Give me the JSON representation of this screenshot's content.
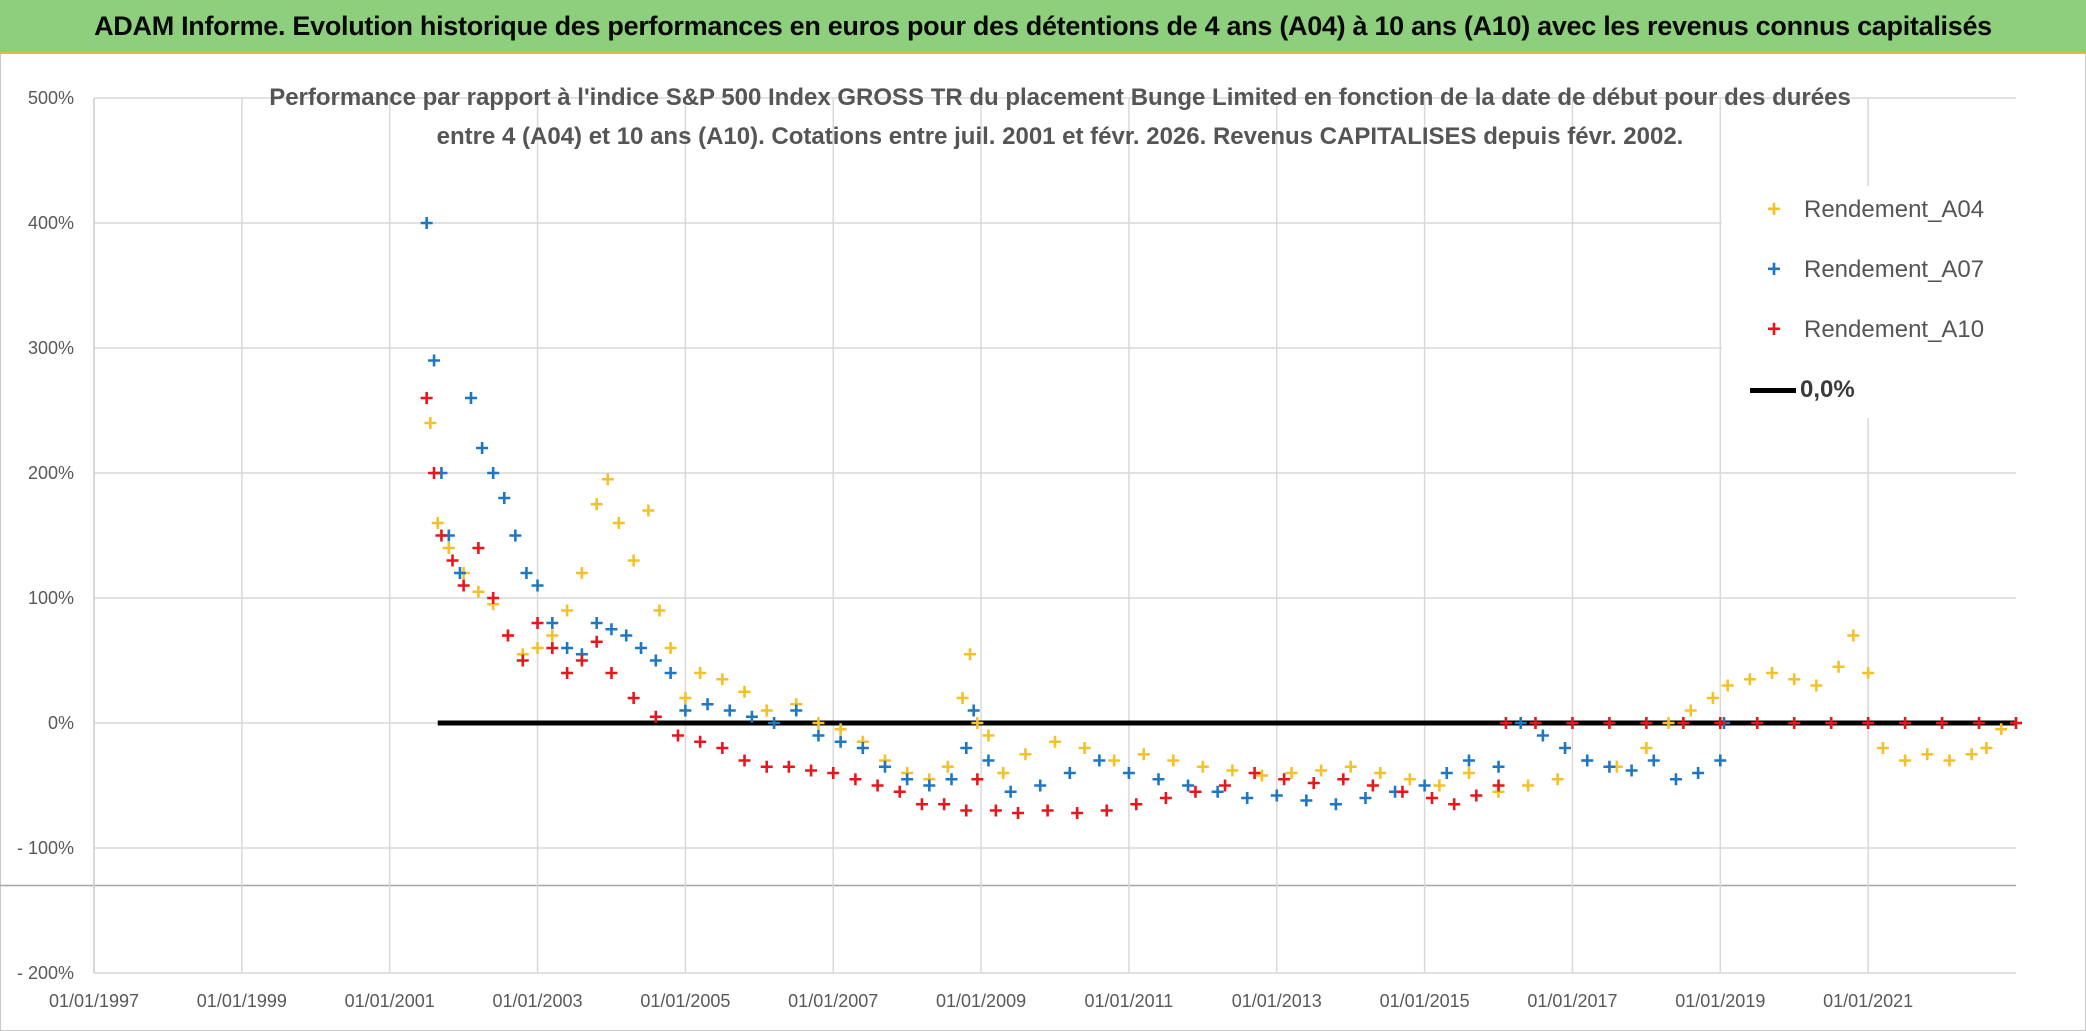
{
  "banner": {
    "title": "ADAM Informe. Evolution historique des performances en euros pour des détentions de 4 ans (A04) à 10 ans (A10) avec les revenus connus capitalisés"
  },
  "colors": {
    "banner_bg": "#8ecf7e",
    "banner_border": "#e9b73a",
    "series_a04": "#f5c02a",
    "series_a07": "#1f77c4",
    "series_a10": "#e8161b",
    "zero_line": "#000000",
    "grid": "#d9d9d9"
  },
  "chart_data": {
    "type": "scatter",
    "title_line1": "Performance par rapport à l'indice S&P 500 Index GROSS TR  du placement Bunge Limited en fonction de la date de début pour des durées",
    "title_line2": "entre 4 (A04) et 10 ans (A10). Cotations entre juil. 2001 et févr. 2026. Revenus CAPITALISES depuis févr. 2002.",
    "xlabel": "",
    "ylabel": "",
    "xlim": [
      1997.0,
      2023.0
    ],
    "ylim": [
      -200,
      500
    ],
    "y_ticks": [
      500,
      400,
      300,
      200,
      100,
      0,
      -100,
      -200
    ],
    "y_tick_labels": [
      "500%",
      "400%",
      "300%",
      "200%",
      "100%",
      "0%",
      "- 100%",
      "- 200%"
    ],
    "x_ticks": [
      1997,
      1999,
      2001,
      2003,
      2005,
      2007,
      2009,
      2011,
      2013,
      2015,
      2017,
      2019,
      2021
    ],
    "x_tick_labels": [
      "01/01/1997",
      "01/01/1999",
      "01/01/2001",
      "01/01/2003",
      "01/01/2005",
      "01/01/2007",
      "01/01/2009",
      "01/01/2011",
      "01/01/2013",
      "01/01/2015",
      "01/01/2017",
      "01/01/2019",
      "01/01/2021"
    ],
    "grid": true,
    "legend_position": "top-right",
    "series": [
      {
        "name": "Rendement_A04",
        "marker": "+",
        "x": [
          2001.55,
          2001.65,
          2001.8,
          2002.0,
          2002.2,
          2002.4,
          2002.6,
          2002.8,
          2003.0,
          2003.2,
          2003.4,
          2003.6,
          2003.8,
          2003.95,
          2004.1,
          2004.3,
          2004.5,
          2004.65,
          2004.8,
          2005.0,
          2005.2,
          2005.5,
          2005.8,
          2006.1,
          2006.5,
          2006.8,
          2007.1,
          2007.4,
          2007.7,
          2008.0,
          2008.3,
          2008.55,
          2008.75,
          2008.85,
          2008.95,
          2009.1,
          2009.3,
          2009.6,
          2010.0,
          2010.4,
          2010.8,
          2011.2,
          2011.6,
          2012.0,
          2012.4,
          2012.8,
          2013.2,
          2013.6,
          2014.0,
          2014.4,
          2014.8,
          2015.2,
          2015.6,
          2016.0,
          2016.4,
          2016.8,
          2017.2,
          2017.6,
          2018.0,
          2018.3,
          2018.6,
          2018.9,
          2019.1,
          2019.4,
          2019.7,
          2020.0,
          2020.3,
          2020.6,
          2020.8,
          2021.0,
          2021.2,
          2021.5,
          2021.8,
          2022.1,
          2022.4,
          2022.6,
          2022.8,
          2023.0
        ],
        "y": [
          240,
          160,
          140,
          120,
          105,
          95,
          70,
          55,
          60,
          70,
          90,
          120,
          175,
          195,
          160,
          130,
          170,
          90,
          60,
          20,
          40,
          35,
          25,
          10,
          15,
          0,
          -5,
          -15,
          -30,
          -40,
          -45,
          -35,
          20,
          55,
          0,
          -10,
          -40,
          -25,
          -15,
          -20,
          -30,
          -25,
          -30,
          -35,
          -38,
          -42,
          -40,
          -38,
          -35,
          -40,
          -45,
          -50,
          -40,
          -55,
          -50,
          -45,
          -30,
          -35,
          -20,
          0,
          10,
          20,
          30,
          35,
          40,
          35,
          30,
          45,
          70,
          40,
          -20,
          -30,
          -25,
          -30,
          -25,
          -20,
          -5,
          0
        ]
      },
      {
        "name": "Rendement_A07",
        "marker": "+",
        "x": [
          2001.5,
          2001.6,
          2001.7,
          2001.8,
          2001.95,
          2002.1,
          2002.25,
          2002.4,
          2002.55,
          2002.7,
          2002.85,
          2003.0,
          2003.2,
          2003.4,
          2003.6,
          2003.8,
          2004.0,
          2004.2,
          2004.4,
          2004.6,
          2004.8,
          2005.0,
          2005.3,
          2005.6,
          2005.9,
          2006.2,
          2006.5,
          2006.8,
          2007.1,
          2007.4,
          2007.7,
          2008.0,
          2008.3,
          2008.6,
          2008.8,
          2008.9,
          2009.1,
          2009.4,
          2009.8,
          2010.2,
          2010.6,
          2011.0,
          2011.4,
          2011.8,
          2012.2,
          2012.6,
          2013.0,
          2013.4,
          2013.8,
          2014.2,
          2014.6,
          2015.0,
          2015.3,
          2015.6,
          2016.0,
          2016.3,
          2016.6,
          2016.9,
          2017.2,
          2017.5,
          2017.8,
          2018.1,
          2018.4,
          2018.7,
          2019.0,
          2019.05
        ],
        "y": [
          400,
          290,
          200,
          150,
          120,
          260,
          220,
          200,
          180,
          150,
          120,
          110,
          80,
          60,
          55,
          80,
          75,
          70,
          60,
          50,
          40,
          10,
          15,
          10,
          5,
          0,
          10,
          -10,
          -15,
          -20,
          -35,
          -45,
          -50,
          -45,
          -20,
          10,
          -30,
          -55,
          -50,
          -40,
          -30,
          -40,
          -45,
          -50,
          -55,
          -60,
          -58,
          -62,
          -65,
          -60,
          -55,
          -50,
          -40,
          -30,
          -35,
          0,
          -10,
          -20,
          -30,
          -35,
          -38,
          -30,
          -45,
          -40,
          -30,
          0
        ]
      },
      {
        "name": "Rendement_A10",
        "marker": "+",
        "x": [
          2001.5,
          2001.6,
          2001.7,
          2001.85,
          2002.0,
          2002.2,
          2002.4,
          2002.6,
          2002.8,
          2003.0,
          2003.2,
          2003.4,
          2003.6,
          2003.8,
          2004.0,
          2004.3,
          2004.6,
          2004.9,
          2005.2,
          2005.5,
          2005.8,
          2006.1,
          2006.4,
          2006.7,
          2007.0,
          2007.3,
          2007.6,
          2007.9,
          2008.2,
          2008.5,
          2008.8,
          2008.95,
          2009.2,
          2009.5,
          2009.9,
          2010.3,
          2010.7,
          2011.1,
          2011.5,
          2011.9,
          2012.3,
          2012.7,
          2013.1,
          2013.5,
          2013.9,
          2014.3,
          2014.7,
          2015.1,
          2015.4,
          2015.7,
          2016.0,
          2016.1,
          2016.5,
          2017.0,
          2017.5,
          2018.0,
          2018.5,
          2019.0,
          2019.5,
          2020.0,
          2020.5,
          2021.0,
          2021.5,
          2022.0,
          2022.5,
          2023.0
        ],
        "y": [
          260,
          200,
          150,
          130,
          110,
          140,
          100,
          70,
          50,
          80,
          60,
          40,
          50,
          65,
          40,
          20,
          5,
          -10,
          -15,
          -20,
          -30,
          -35,
          -35,
          -38,
          -40,
          -45,
          -50,
          -55,
          -65,
          -65,
          -70,
          -45,
          -70,
          -72,
          -70,
          -72,
          -70,
          -65,
          -60,
          -55,
          -50,
          -40,
          -45,
          -48,
          -45,
          -50,
          -55,
          -60,
          -65,
          -58,
          -50,
          0,
          0,
          0,
          0,
          0,
          0,
          0,
          0,
          0,
          0,
          0,
          0,
          0,
          0,
          0
        ]
      },
      {
        "name": "0,0%",
        "marker": "line",
        "x": [
          2001.65,
          2023.0
        ],
        "y": [
          0,
          0
        ]
      }
    ]
  }
}
